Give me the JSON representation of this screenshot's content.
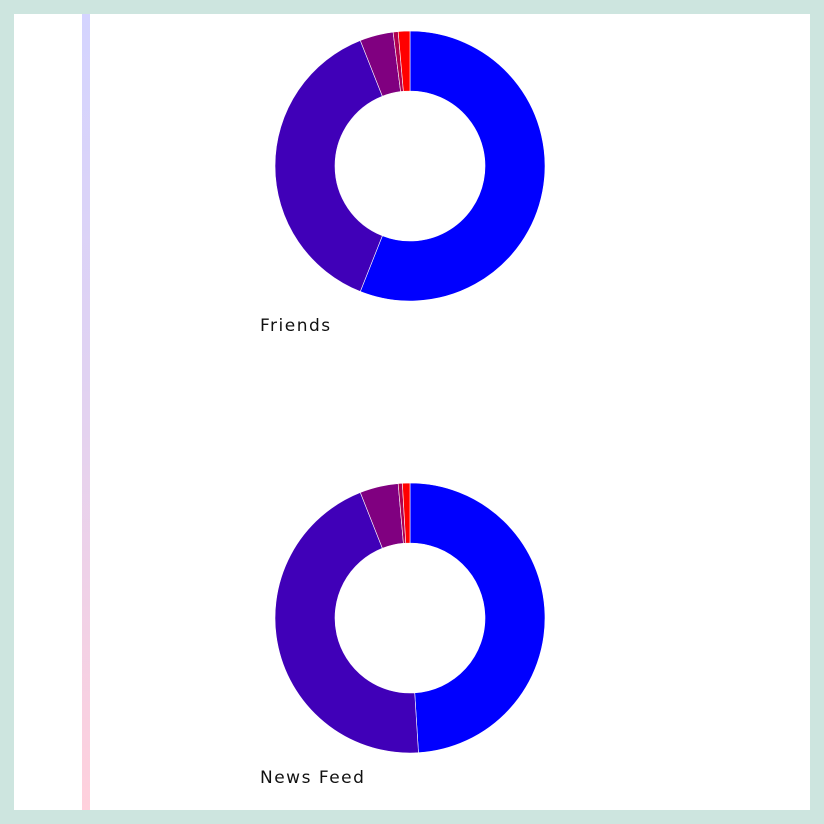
{
  "chart_data": [
    {
      "type": "pie",
      "title": "Friends",
      "categories": [
        "",
        "",
        "",
        "",
        ""
      ],
      "values": [
        56,
        38,
        4,
        0.6,
        1.4
      ],
      "colors": [
        "#0000ff",
        "#4000b8",
        "#800080",
        "#b00050",
        "#ff0000"
      ]
    },
    {
      "type": "pie",
      "title": "News Feed",
      "categories": [
        "",
        "",
        "",
        "",
        ""
      ],
      "values": [
        49,
        45,
        4.6,
        0.5,
        0.9
      ],
      "colors": [
        "#0000ff",
        "#4000b8",
        "#800080",
        "#b00050",
        "#ff0000"
      ]
    }
  ]
}
